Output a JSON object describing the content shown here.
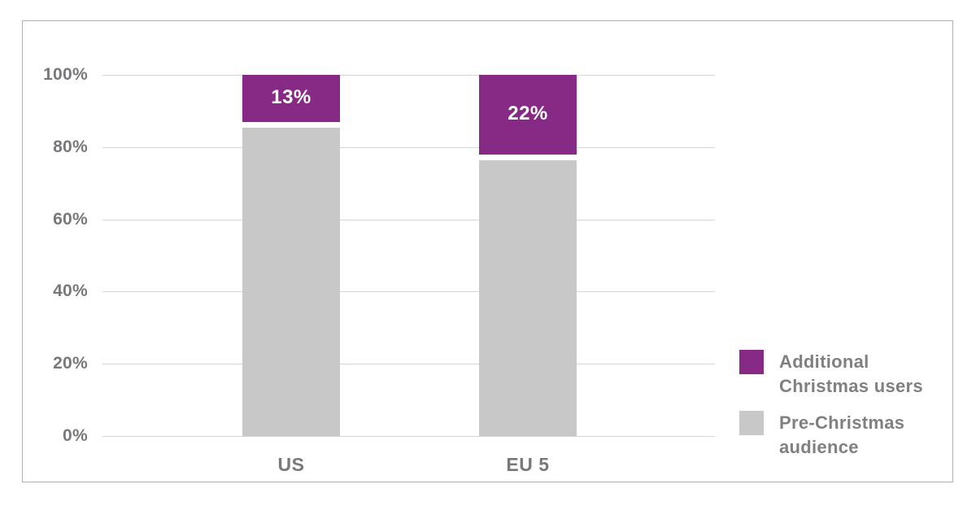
{
  "chart_data": {
    "type": "bar",
    "subtype": "stacked-100-percent",
    "title": "",
    "xlabel": "",
    "ylabel": "",
    "categories": [
      "US",
      "EU 5"
    ],
    "series": [
      {
        "name": "Additional Christmas users",
        "color": "#862a85",
        "values": [
          13,
          22
        ],
        "data_labels": [
          "13%",
          "22%"
        ],
        "data_label_color": "#ffffff",
        "position": "top"
      },
      {
        "name": "Pre-Christmas audience",
        "color": "#c8c8c8",
        "values": [
          87,
          78
        ],
        "position": "bottom"
      }
    ],
    "yticks": [
      0,
      20,
      40,
      60,
      80,
      100
    ],
    "ytick_labels": [
      "0%",
      "20%",
      "40%",
      "60%",
      "80%",
      "100%"
    ],
    "ylim": [
      0,
      100
    ],
    "grid": true,
    "legend_position": "right",
    "colors": {
      "axis_text": "#77787b",
      "legend_text": "#808083",
      "gridline": "#d5d5d5",
      "frame_border": "#b2b2b2",
      "background": "#ffffff"
    }
  }
}
